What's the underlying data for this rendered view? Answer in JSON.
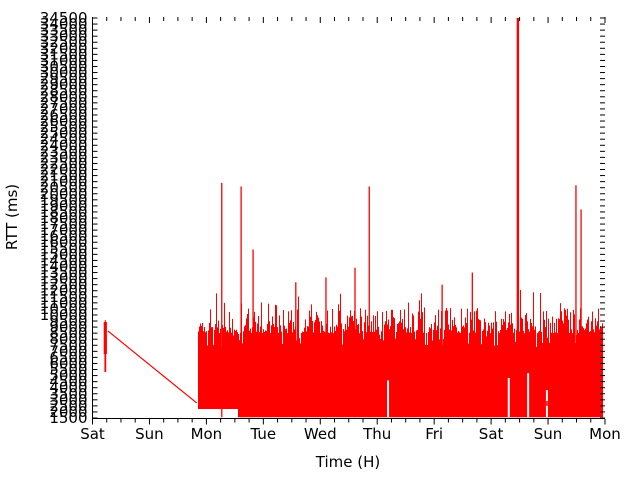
{
  "chart_data": {
    "type": "line",
    "title": "",
    "xlabel": "Time (H)",
    "ylabel": "RTT (ms)",
    "series_color": "#ff0000",
    "axis_color": "#000000",
    "background_color": "#ffffff",
    "grid": false,
    "legend_position": "none",
    "x_axis": {
      "tick_labels": [
        "Sat",
        "Sun",
        "Mon",
        "Tue",
        "Wed",
        "Thu",
        "Fri",
        "Sat",
        "Sun",
        "Mon"
      ],
      "minor_ticks_per_interval": 3,
      "span_days": 9
    },
    "y_axis": {
      "min": 1500,
      "max": 34500,
      "tick_step": 500,
      "labels_overlap": true
    },
    "features": {
      "initial_burst": {
        "x_day": 0.225,
        "segments": [
          {
            "rtt_from": 6780,
            "rtt_to": 9420
          },
          {
            "rtt_from": 5300,
            "rtt_to": 6780
          },
          {
            "rtt_from": 9420,
            "rtt_to": 9580
          }
        ]
      },
      "descending_line": {
        "from_day": 0.27,
        "from_rtt": 8680,
        "to_day": 1.83,
        "to_rtt": 2740
      },
      "noise_band": {
        "start_day": 1.85,
        "end_day": 8.95,
        "base_rtt_initial": 2240,
        "base_rtt_main": 1560,
        "base_step_day": 2.54,
        "top_base_rtt": 8500,
        "top_jitter_rtt": 2100,
        "mid_spike_prob": 0.16,
        "mid_spike_rtt": 1900,
        "tall_spike_prob": 0.03,
        "tall_spike_min_rtt": 800,
        "tall_spike_extra_rtt": 1400,
        "notch_prob": 0.08,
        "notch_base_rtt": 7300,
        "notch_range_rtt": 1300,
        "noise_seed": 1337
      },
      "spikes": [
        {
          "day": 2.27,
          "rtt": 20900
        },
        {
          "day": 2.61,
          "rtt": 20600
        },
        {
          "day": 2.82,
          "rtt": 15400
        },
        {
          "day": 3.57,
          "rtt": 12700
        },
        {
          "day": 4.1,
          "rtt": 13100
        },
        {
          "day": 4.61,
          "rtt": 13900
        },
        {
          "day": 4.86,
          "rtt": 20600
        },
        {
          "day": 6.14,
          "rtt": 12500
        },
        {
          "day": 6.67,
          "rtt": 13500
        },
        {
          "day": 7.47,
          "rtt": 34500,
          "clipped": true,
          "wide": true
        },
        {
          "day": 8.49,
          "rtt": 20700
        },
        {
          "day": 8.58,
          "rtt": 18700
        }
      ],
      "gaps": [
        {
          "day": 5.19,
          "up_to_rtt": 4600
        },
        {
          "day": 7.31,
          "up_to_rtt": 4800
        },
        {
          "day": 7.65,
          "up_to_rtt": 5200
        },
        {
          "day": 7.98,
          "up_to_rtt": 3800,
          "dash_rtt": [
            2500,
            2900
          ]
        }
      ]
    }
  }
}
